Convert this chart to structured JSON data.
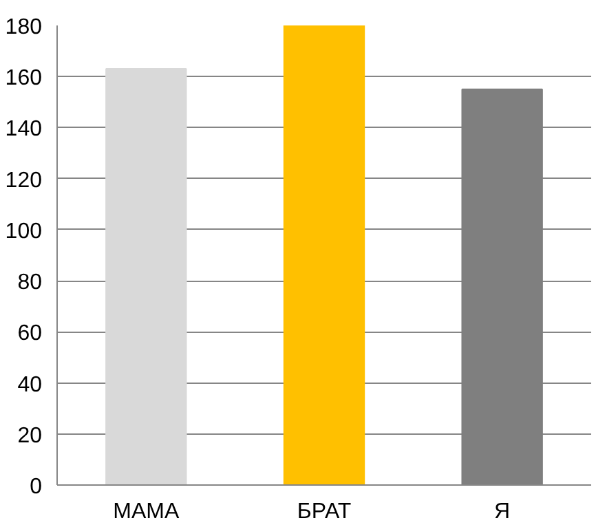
{
  "chart_data": {
    "type": "bar",
    "categories": [
      "МАМА",
      "БРАТ",
      "Я"
    ],
    "values": [
      163,
      180,
      155
    ],
    "colors": [
      "#d9d9d9",
      "#ffc000",
      "#7f7f7f"
    ],
    "ylim": [
      0,
      180
    ],
    "yticks": [
      0,
      20,
      40,
      60,
      80,
      100,
      120,
      140,
      160,
      180
    ],
    "grid": "y"
  }
}
